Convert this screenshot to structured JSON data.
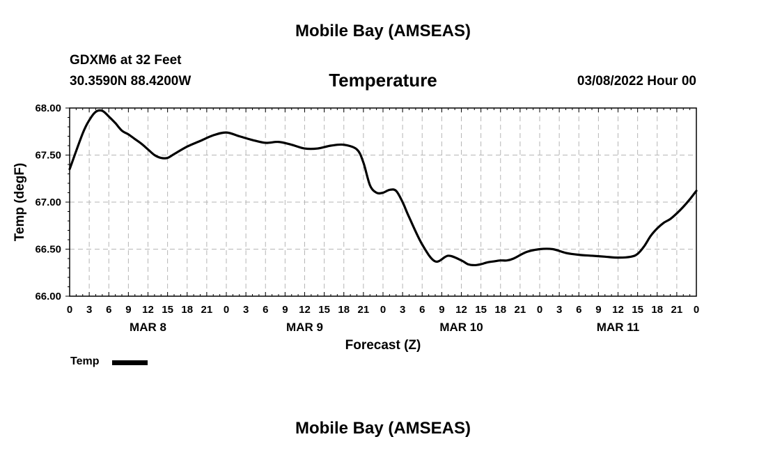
{
  "header": {
    "title": "Mobile Bay (AMSEAS)",
    "station": "GDXM6 at 32 Feet",
    "coords": "30.3590N  88.4200W",
    "chart_title": "Temperature",
    "run_time": "03/08/2022 Hour 00"
  },
  "footer": {
    "title": "Mobile Bay (AMSEAS)"
  },
  "legend": {
    "label": "Temp"
  },
  "chart_data": {
    "type": "line",
    "title": "Temperature",
    "xlabel": "Forecast (Z)",
    "ylabel": "Temp (degF)",
    "ylim": [
      66.0,
      68.0
    ],
    "xlim": [
      0,
      96
    ],
    "y_ticks": [
      "66.00",
      "66.50",
      "67.00",
      "67.50",
      "68.00"
    ],
    "x_tick_labels": [
      "0",
      "3",
      "6",
      "9",
      "12",
      "15",
      "18",
      "21",
      "0",
      "3",
      "6",
      "9",
      "12",
      "15",
      "18",
      "21",
      "0",
      "3",
      "6",
      "9",
      "12",
      "15",
      "18",
      "21",
      "0",
      "3",
      "6",
      "9",
      "12",
      "15",
      "18",
      "21",
      "0"
    ],
    "day_labels": [
      "MAR 8",
      "MAR 9",
      "MAR 10",
      "MAR 11"
    ],
    "grid": true,
    "legend_position": "bottom-left",
    "series": [
      {
        "name": "Temp",
        "color": "#000000",
        "x": [
          0,
          2,
          3,
          4,
          5,
          6,
          7,
          8,
          9,
          10,
          11,
          12,
          13,
          14,
          15,
          16,
          18,
          20,
          22,
          24,
          26,
          28,
          30,
          32,
          34,
          36,
          38,
          40,
          42,
          44,
          45,
          46,
          47,
          48,
          49,
          50,
          51,
          52,
          54,
          56,
          58,
          60,
          61,
          62,
          63,
          64,
          65,
          66,
          67,
          68,
          70,
          72,
          74,
          76,
          78,
          80,
          82,
          84,
          86,
          87,
          88,
          89,
          90,
          91,
          92,
          93,
          94,
          95,
          96
        ],
        "y": [
          67.35,
          67.73,
          67.87,
          67.96,
          67.97,
          67.91,
          67.84,
          67.76,
          67.72,
          67.67,
          67.62,
          67.56,
          67.5,
          67.47,
          67.47,
          67.51,
          67.59,
          67.65,
          67.71,
          67.74,
          67.7,
          67.66,
          67.63,
          67.64,
          67.61,
          67.57,
          67.57,
          67.6,
          67.61,
          67.56,
          67.42,
          67.18,
          67.1,
          67.1,
          67.13,
          67.12,
          67.0,
          66.84,
          66.55,
          66.37,
          66.43,
          66.38,
          66.34,
          66.33,
          66.34,
          66.36,
          66.37,
          66.38,
          66.38,
          66.4,
          66.47,
          66.5,
          66.5,
          66.46,
          66.44,
          66.43,
          66.42,
          66.41,
          66.42,
          66.45,
          66.53,
          66.64,
          66.72,
          66.78,
          66.82,
          66.88,
          66.95,
          67.03,
          67.12
        ]
      }
    ]
  }
}
